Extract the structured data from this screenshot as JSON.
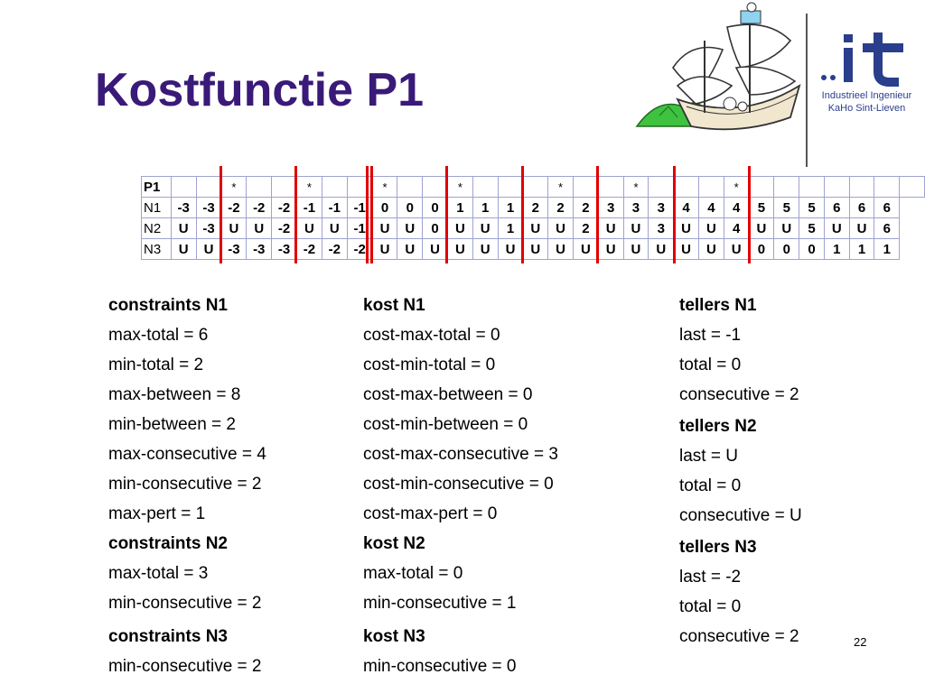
{
  "title": "Kostfunctie P1",
  "logo": {
    "mark": "..it",
    "line1": "Industrieel Ingenieur",
    "line2": "KaHo Sint-Lieven"
  },
  "table": {
    "rows": [
      {
        "label": "P1",
        "cells": [
          "",
          "",
          "*",
          "",
          "",
          "*",
          "",
          "",
          "*",
          "",
          "",
          "*",
          "",
          "",
          "",
          "*",
          "",
          "",
          "*",
          "",
          "",
          "",
          "*",
          "",
          "",
          "",
          "",
          "",
          "",
          ""
        ]
      },
      {
        "label": "N1",
        "cells": [
          "-3",
          "-3",
          "-2",
          "-2",
          "-2",
          "-1",
          "-1",
          "-1",
          "0",
          "0",
          "0",
          "1",
          "1",
          "1",
          "2",
          "2",
          "2",
          "3",
          "3",
          "3",
          "4",
          "4",
          "4",
          "5",
          "5",
          "5",
          "6",
          "6",
          "6"
        ]
      },
      {
        "label": "N2",
        "cells": [
          "U",
          "-3",
          "U",
          "U",
          "-2",
          "U",
          "U",
          "-1",
          "U",
          "U",
          "0",
          "U",
          "U",
          "1",
          "U",
          "U",
          "2",
          "U",
          "U",
          "3",
          "U",
          "U",
          "4",
          "U",
          "U",
          "5",
          "U",
          "U",
          "6"
        ]
      },
      {
        "label": "N3",
        "cells": [
          "U",
          "U",
          "-3",
          "-3",
          "-3",
          "-2",
          "-2",
          "-2",
          "U",
          "U",
          "U",
          "U",
          "U",
          "U",
          "U",
          "U",
          "U",
          "U",
          "U",
          "U",
          "U",
          "U",
          "U",
          "0",
          "0",
          "0",
          "1",
          "1",
          "1"
        ]
      }
    ]
  },
  "col1": {
    "h1": "constraints N1",
    "l1": [
      "max-total = 6",
      "min-total = 2",
      "max-between = 8",
      "min-between = 2",
      "max-consecutive = 4",
      "min-consecutive = 2",
      "max-pert = 1"
    ],
    "h2": "constraints N2",
    "l2": [
      "max-total = 3",
      "min-consecutive = 2"
    ],
    "h3": "constraints N3",
    "l3": [
      "min-consecutive = 2"
    ]
  },
  "col2": {
    "h1": "kost N1",
    "l1": [
      "cost-max-total = 0",
      "cost-min-total = 0",
      "cost-max-between = 0",
      "cost-min-between = 0",
      "cost-max-consecutive = 3",
      "cost-min-consecutive = 0",
      "cost-max-pert = 0"
    ],
    "h2": "kost N2",
    "l2": [
      "max-total = 0",
      "min-consecutive = 1"
    ],
    "h3": "kost N3",
    "l3": [
      "min-consecutive = 0"
    ]
  },
  "col3": {
    "h1": "tellers N1",
    "l1": [
      "last = -1",
      "total = 0",
      "consecutive = 2"
    ],
    "h2": "tellers N2",
    "l2": [
      "last = U",
      "total = 0",
      "consecutive = U"
    ],
    "h3": "tellers N3",
    "l3": [
      "last = -2",
      "total = 0",
      "consecutive = 2"
    ]
  },
  "page_number": "22",
  "colors": {
    "title": "#3a1a78",
    "red_marker": "#e00000",
    "grid_border": "#9fa3cf"
  }
}
